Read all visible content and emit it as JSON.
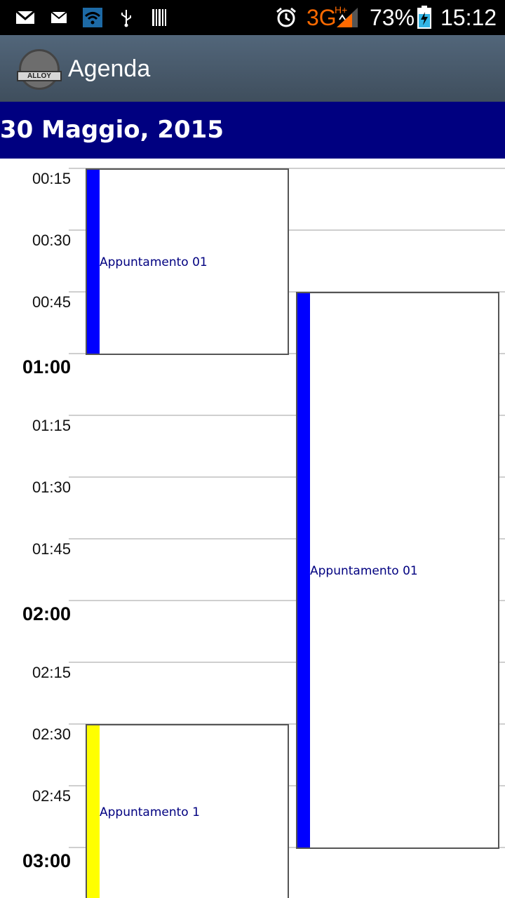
{
  "status_bar": {
    "icons": [
      "gmail-icon",
      "mail-icon",
      "wifi-icon",
      "usb-icon",
      "barcode-icon",
      "alarm-icon",
      "signal-icon",
      "battery-charging-icon"
    ],
    "network": "3G",
    "network_sub": "H+",
    "battery": "73%",
    "time": "15:12"
  },
  "action_bar": {
    "logo_text": "ALLOY",
    "title": "Agenda"
  },
  "date_header": {
    "date": "30 Maggio, 2015"
  },
  "timeline": {
    "labels": [
      {
        "time": "00:15",
        "bold": false
      },
      {
        "time": "00:30",
        "bold": false
      },
      {
        "time": "00:45",
        "bold": false
      },
      {
        "time": "01:00",
        "bold": true
      },
      {
        "time": "01:15",
        "bold": false
      },
      {
        "time": "01:30",
        "bold": false
      },
      {
        "time": "01:45",
        "bold": false
      },
      {
        "time": "02:00",
        "bold": true
      },
      {
        "time": "02:15",
        "bold": false
      },
      {
        "time": "02:30",
        "bold": false
      },
      {
        "time": "02:45",
        "bold": false
      },
      {
        "time": "03:00",
        "bold": true
      }
    ]
  },
  "events": [
    {
      "title": "Appuntamento 01",
      "color": "#0000ff",
      "start": "00:15",
      "end": "01:00",
      "column": 0
    },
    {
      "title": "Appuntamento 01",
      "color": "#0000ff",
      "start": "00:45",
      "end": "03:00",
      "column": 1
    },
    {
      "title": "Appuntamento 1",
      "color": "#ffff00",
      "start": "02:30",
      "end": "03:15",
      "column": 0
    }
  ]
}
